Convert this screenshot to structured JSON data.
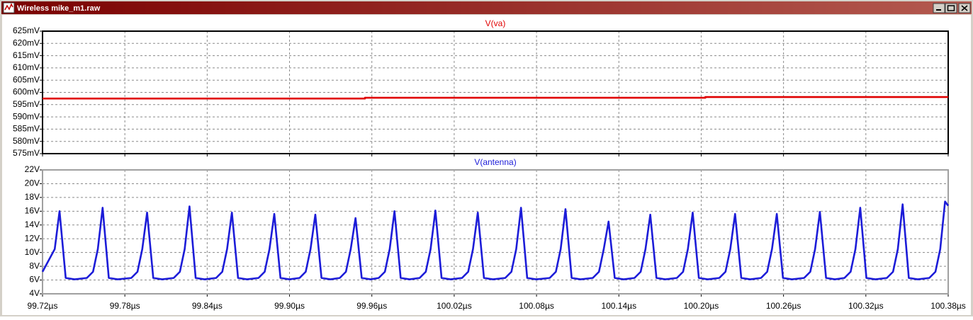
{
  "window": {
    "title": "Wireless mike_m1.raw"
  },
  "chart_data": [
    {
      "type": "line",
      "title": "V(va)",
      "color": "#e00000",
      "x": [
        99.72,
        99.955,
        99.955,
        100.203,
        100.203,
        100.38
      ],
      "values": [
        597.5,
        597.5,
        597.8,
        597.8,
        598.1,
        598.1
      ],
      "xlim": [
        99.72,
        100.38
      ],
      "ylim": [
        575,
        625
      ],
      "yticks": [
        {
          "value": 575,
          "label": "575mV"
        },
        {
          "value": 580,
          "label": "580mV"
        },
        {
          "value": 585,
          "label": "585mV"
        },
        {
          "value": 590,
          "label": "590mV"
        },
        {
          "value": 595,
          "label": "595mV"
        },
        {
          "value": 600,
          "label": "600mV"
        },
        {
          "value": 605,
          "label": "605mV"
        },
        {
          "value": 610,
          "label": "610mV"
        },
        {
          "value": 615,
          "label": "615mV"
        },
        {
          "value": 620,
          "label": "620mV"
        },
        {
          "value": 625,
          "label": "625mV"
        }
      ],
      "grid": true
    },
    {
      "type": "line",
      "title": "V(antenna)",
      "color": "#1c1cd8",
      "x": [
        99.72,
        99.7289,
        99.7324,
        99.7369,
        99.7434,
        99.7523,
        99.7568,
        99.7603,
        99.7638,
        99.7683,
        99.7748,
        99.7847,
        99.7892,
        99.7927,
        99.7962,
        99.8007,
        99.8072,
        99.8156,
        99.8201,
        99.8236,
        99.8271,
        99.8316,
        99.8381,
        99.8465,
        99.851,
        99.8545,
        99.858,
        99.8625,
        99.869,
        99.8774,
        99.8819,
        99.8854,
        99.8889,
        99.8934,
        99.8999,
        99.9073,
        99.9118,
        99.9153,
        99.9188,
        99.9233,
        99.9298,
        99.9366,
        99.9411,
        99.9446,
        99.9481,
        99.9526,
        99.9591,
        99.965,
        99.9695,
        99.973,
        99.9765,
        99.981,
        99.9875,
        99.9948,
        99.9993,
        100.0028,
        100.0063,
        100.0108,
        100.0173,
        100.0257,
        100.0302,
        100.0337,
        100.0372,
        100.0417,
        100.0482,
        100.0572,
        100.0617,
        100.0652,
        100.0687,
        100.0732,
        100.0797,
        100.0896,
        100.0941,
        100.0976,
        100.1011,
        100.1056,
        100.1121,
        100.121,
        100.1255,
        100.129,
        100.1325,
        100.137,
        100.1435,
        100.1514,
        100.1559,
        100.1594,
        100.1629,
        100.1674,
        100.1739,
        100.1823,
        100.1868,
        100.1903,
        100.1938,
        100.1983,
        100.2048,
        100.2132,
        100.2177,
        100.2212,
        100.2247,
        100.2292,
        100.2357,
        100.2436,
        100.2481,
        100.2516,
        100.2551,
        100.2596,
        100.2661,
        100.275,
        100.2795,
        100.283,
        100.2865,
        100.291,
        100.2975,
        100.3044,
        100.3089,
        100.3124,
        100.3159,
        100.3204,
        100.3269,
        100.3353,
        100.3398,
        100.3433,
        100.3468,
        100.3513,
        100.3578,
        100.3662,
        100.3707,
        100.3742,
        100.3777,
        100.38
      ],
      "values": [
        7.2,
        10.5,
        16,
        6.3,
        6.1,
        6.3,
        7.2,
        10.5,
        16.5,
        6.3,
        6.1,
        6.3,
        7.2,
        10.5,
        15.8,
        6.3,
        6.1,
        6.3,
        7.2,
        10.5,
        16.7,
        6.3,
        6.1,
        6.3,
        7.2,
        10.5,
        15.8,
        6.3,
        6.1,
        6.3,
        7.2,
        10.5,
        15.6,
        6.3,
        6.1,
        6.3,
        7.2,
        10.5,
        15.5,
        6.3,
        6.1,
        6.3,
        7.2,
        10.5,
        15,
        6.3,
        6.1,
        6.3,
        7.2,
        10.5,
        16,
        6.3,
        6.1,
        6.3,
        7.2,
        10.5,
        16.1,
        6.3,
        6.1,
        6.3,
        7.2,
        10.5,
        15.8,
        6.3,
        6.1,
        6.3,
        7.2,
        10.5,
        16.5,
        6.3,
        6.1,
        6.3,
        7.2,
        10.5,
        16.3,
        6.3,
        6.1,
        6.3,
        7.2,
        10.5,
        14.5,
        6.3,
        6.1,
        6.3,
        7.2,
        10.5,
        15.5,
        6.3,
        6.1,
        6.3,
        7.2,
        10.5,
        15.8,
        6.3,
        6.1,
        6.3,
        7.2,
        10.5,
        15.6,
        6.3,
        6.1,
        6.3,
        7.2,
        10.5,
        15.6,
        6.3,
        6.1,
        6.3,
        7.2,
        10.5,
        15.9,
        6.3,
        6.1,
        6.3,
        7.2,
        10.5,
        16.5,
        6.3,
        6.1,
        6.3,
        7.2,
        10.5,
        17,
        6.3,
        6.1,
        6.3,
        7.2,
        10.5,
        17.4,
        16.8
      ],
      "xlim": [
        99.72,
        100.38
      ],
      "ylim": [
        4,
        22
      ],
      "yticks": [
        {
          "value": 4,
          "label": "4V"
        },
        {
          "value": 6,
          "label": "6V"
        },
        {
          "value": 8,
          "label": "8V"
        },
        {
          "value": 10,
          "label": "10V"
        },
        {
          "value": 12,
          "label": "12V"
        },
        {
          "value": 14,
          "label": "14V"
        },
        {
          "value": 16,
          "label": "16V"
        },
        {
          "value": 18,
          "label": "18V"
        },
        {
          "value": 20,
          "label": "20V"
        },
        {
          "value": 22,
          "label": "22V"
        }
      ],
      "xticks": [
        {
          "value": 99.72,
          "label": "99.72µs"
        },
        {
          "value": 99.78,
          "label": "99.78µs"
        },
        {
          "value": 99.84,
          "label": "99.84µs"
        },
        {
          "value": 99.9,
          "label": "99.90µs"
        },
        {
          "value": 99.96,
          "label": "99.96µs"
        },
        {
          "value": 100.02,
          "label": "100.02µs"
        },
        {
          "value": 100.08,
          "label": "100.08µs"
        },
        {
          "value": 100.14,
          "label": "100.14µs"
        },
        {
          "value": 100.2,
          "label": "100.20µs"
        },
        {
          "value": 100.26,
          "label": "100.26µs"
        },
        {
          "value": 100.32,
          "label": "100.32µs"
        },
        {
          "value": 100.38,
          "label": "100.38µs"
        }
      ],
      "grid": true
    }
  ]
}
